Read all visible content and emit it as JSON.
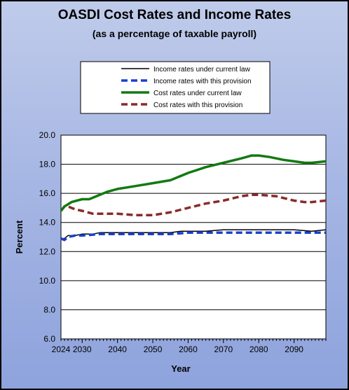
{
  "chart_data": {
    "type": "line",
    "title": "OASDI Cost Rates and Income Rates",
    "subtitle": "(as a percentage of taxable payroll)",
    "xlabel": "Year",
    "ylabel": "Percent",
    "xlim": [
      2024,
      2099
    ],
    "ylim": [
      6.0,
      20.0
    ],
    "x_ticks": [
      2030,
      2040,
      2050,
      2060,
      2070,
      2080,
      2090
    ],
    "x_first_label": "2024",
    "y_ticks": [
      "6.0",
      "8.0",
      "10.0",
      "12.0",
      "14.0",
      "16.0",
      "18.0",
      "20.0"
    ],
    "grid": "horizontal",
    "legend_position": "top",
    "series": [
      {
        "name": "Income rates under current law",
        "color": "#000000",
        "style": "solid-thin",
        "x": [
          2024,
          2025,
          2026,
          2028,
          2030,
          2033,
          2035,
          2040,
          2045,
          2050,
          2055,
          2058,
          2060,
          2065,
          2070,
          2075,
          2080,
          2085,
          2090,
          2095,
          2099
        ],
        "y": [
          12.9,
          12.9,
          13.1,
          13.1,
          13.2,
          13.2,
          13.3,
          13.3,
          13.3,
          13.3,
          13.3,
          13.4,
          13.4,
          13.4,
          13.5,
          13.5,
          13.5,
          13.5,
          13.5,
          13.4,
          13.5
        ]
      },
      {
        "name": "Income rates with this provision",
        "color": "#1a3fcf",
        "style": "dashed-thick",
        "x": [
          2024,
          2025,
          2026,
          2028,
          2030,
          2035,
          2040,
          2045,
          2050,
          2055,
          2060,
          2065,
          2070,
          2075,
          2080,
          2085,
          2090,
          2095,
          2099
        ],
        "y": [
          12.9,
          12.8,
          13.0,
          13.1,
          13.1,
          13.2,
          13.2,
          13.2,
          13.2,
          13.2,
          13.3,
          13.3,
          13.3,
          13.3,
          13.3,
          13.3,
          13.3,
          13.3,
          13.3
        ]
      },
      {
        "name": "Cost rates under current law",
        "color": "#117a11",
        "style": "solid-thick",
        "x": [
          2024,
          2025,
          2027,
          2030,
          2032,
          2035,
          2037,
          2040,
          2045,
          2050,
          2055,
          2060,
          2065,
          2070,
          2075,
          2078,
          2080,
          2083,
          2087,
          2090,
          2093,
          2095,
          2099
        ],
        "y": [
          14.8,
          15.1,
          15.4,
          15.6,
          15.6,
          15.9,
          16.1,
          16.3,
          16.5,
          16.7,
          16.9,
          17.4,
          17.8,
          18.1,
          18.4,
          18.6,
          18.6,
          18.5,
          18.3,
          18.2,
          18.1,
          18.1,
          18.2
        ]
      },
      {
        "name": "Cost rates with this provision",
        "color": "#8b2a2a",
        "style": "dashed-thick",
        "x": [
          2024,
          2025,
          2026,
          2028,
          2030,
          2033,
          2035,
          2040,
          2045,
          2050,
          2055,
          2060,
          2065,
          2070,
          2075,
          2078,
          2080,
          2085,
          2090,
          2093,
          2095,
          2099
        ],
        "y": [
          14.8,
          15.1,
          15.1,
          14.9,
          14.8,
          14.6,
          14.6,
          14.6,
          14.5,
          14.5,
          14.7,
          15.0,
          15.3,
          15.5,
          15.8,
          15.9,
          15.9,
          15.8,
          15.5,
          15.4,
          15.4,
          15.5
        ]
      }
    ]
  }
}
